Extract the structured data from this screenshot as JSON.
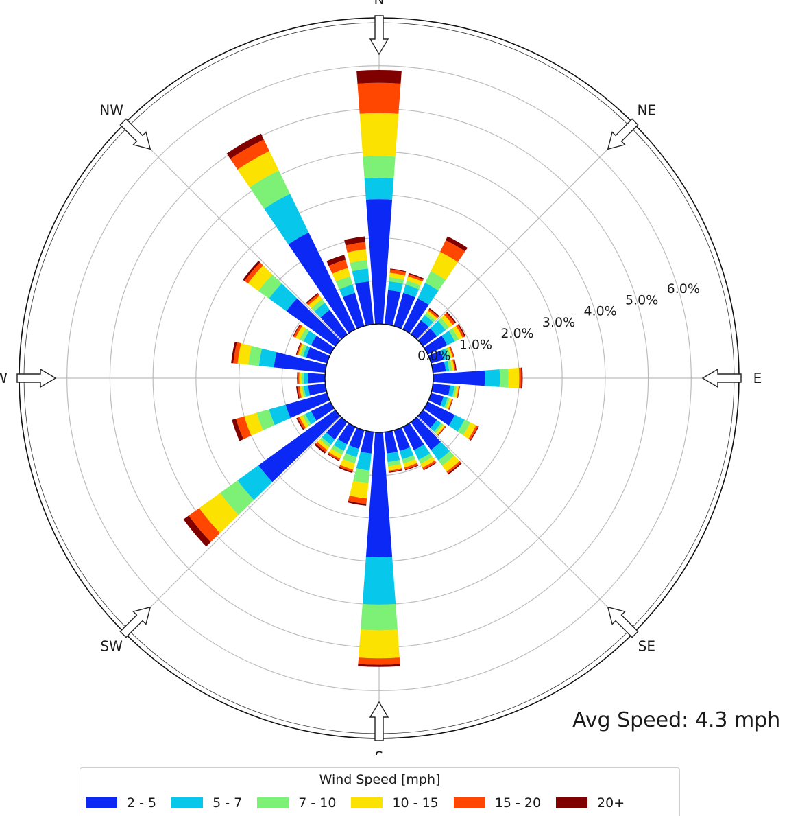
{
  "chart_data": {
    "type": "windrose",
    "title": "",
    "compass": [
      "N",
      "NE",
      "E",
      "SE",
      "S",
      "SW",
      "W",
      "NW"
    ],
    "radial_ticks": [
      "0.0%",
      "1.0%",
      "2.0%",
      "3.0%",
      "4.0%",
      "5.0%",
      "6.0%"
    ],
    "rmax": 7.0,
    "sector_count": 36,
    "sector_start_deg": [
      0,
      10,
      20,
      30,
      40,
      50,
      60,
      70,
      80,
      90,
      100,
      110,
      120,
      130,
      140,
      150,
      160,
      170,
      180,
      190,
      200,
      210,
      220,
      230,
      240,
      250,
      260,
      270,
      280,
      290,
      300,
      310,
      320,
      330,
      340,
      350
    ],
    "legend_title": "Wind Speed [mph]",
    "bins": [
      {
        "name": "2 - 5",
        "color": "#0b28f5"
      },
      {
        "name": "5 - 7",
        "color": "#07c8ea"
      },
      {
        "name": "7 - 10",
        "color": "#7df076"
      },
      {
        "name": "10 - 15",
        "color": "#fbe201"
      },
      {
        "name": "15 - 20",
        "color": "#ff4702"
      },
      {
        "name": "20+",
        "color": "#800000"
      }
    ],
    "sectors_cumulative_pct": [
      [
        2.9,
        3.4,
        3.9,
        4.9,
        5.6,
        5.9
      ],
      [
        0.8,
        1.0,
        1.1,
        1.2,
        1.28,
        1.3
      ],
      [
        0.8,
        1.0,
        1.1,
        1.2,
        1.25,
        1.28
      ],
      [
        0.8,
        1.2,
        1.5,
        2.0,
        2.3,
        2.4
      ],
      [
        0.4,
        0.55,
        0.62,
        0.68,
        0.72,
        0.75
      ],
      [
        0.4,
        0.65,
        0.75,
        0.85,
        0.92,
        0.95
      ],
      [
        0.5,
        0.7,
        0.8,
        0.9,
        0.95,
        0.98
      ],
      [
        0.3,
        0.42,
        0.48,
        0.52,
        0.55,
        0.56
      ],
      [
        0.3,
        0.38,
        0.45,
        0.5,
        0.53,
        0.55
      ],
      [
        1.2,
        1.55,
        1.75,
        2.0,
        2.05,
        2.08
      ],
      [
        0.4,
        0.5,
        0.55,
        0.6,
        0.62,
        0.63
      ],
      [
        0.3,
        0.4,
        0.45,
        0.5,
        0.52,
        0.53
      ],
      [
        0.7,
        0.95,
        1.1,
        1.25,
        1.3,
        1.32
      ],
      [
        0.4,
        0.52,
        0.58,
        0.63,
        0.65,
        0.66
      ],
      [
        0.8,
        1.1,
        1.25,
        1.42,
        1.47,
        1.5
      ],
      [
        0.6,
        0.85,
        0.95,
        1.05,
        1.1,
        1.12
      ],
      [
        0.5,
        0.7,
        0.8,
        0.9,
        0.95,
        0.97
      ],
      [
        0.5,
        0.7,
        0.8,
        0.9,
        0.93,
        0.95
      ],
      [
        2.9,
        4.0,
        4.6,
        5.25,
        5.4,
        5.45
      ],
      [
        0.5,
        0.9,
        1.2,
        1.55,
        1.68,
        1.72
      ],
      [
        0.45,
        0.65,
        0.8,
        0.95,
        1.0,
        1.03
      ],
      [
        0.45,
        0.62,
        0.72,
        0.82,
        0.86,
        0.88
      ],
      [
        0.5,
        0.65,
        0.72,
        0.8,
        0.86,
        0.9
      ],
      [
        2.2,
        2.8,
        3.3,
        3.9,
        4.2,
        4.35
      ],
      [
        0.5,
        0.65,
        0.72,
        0.8,
        0.85,
        0.88
      ],
      [
        1.0,
        1.4,
        1.7,
        2.0,
        2.2,
        2.3
      ],
      [
        0.4,
        0.5,
        0.55,
        0.6,
        0.65,
        0.68
      ],
      [
        0.4,
        0.5,
        0.55,
        0.6,
        0.63,
        0.65
      ],
      [
        1.2,
        1.55,
        1.8,
        2.05,
        2.15,
        2.2
      ],
      [
        0.5,
        0.58,
        0.65,
        0.7,
        0.73,
        0.75
      ],
      [
        0.5,
        0.7,
        0.8,
        0.9,
        0.95,
        0.97
      ],
      [
        1.4,
        1.9,
        2.2,
        2.5,
        2.6,
        2.65
      ],
      [
        0.7,
        0.9,
        1.0,
        1.1,
        1.15,
        1.18
      ],
      [
        2.5,
        3.5,
        4.1,
        4.6,
        4.9,
        5.05
      ],
      [
        0.8,
        1.0,
        1.2,
        1.4,
        1.6,
        1.72
      ],
      [
        1.0,
        1.3,
        1.5,
        1.75,
        1.92,
        2.05
      ]
    ],
    "radial_gridlines": true,
    "legend_position": "bottom-center",
    "annotation": "Avg Speed: 4.3 mph"
  }
}
